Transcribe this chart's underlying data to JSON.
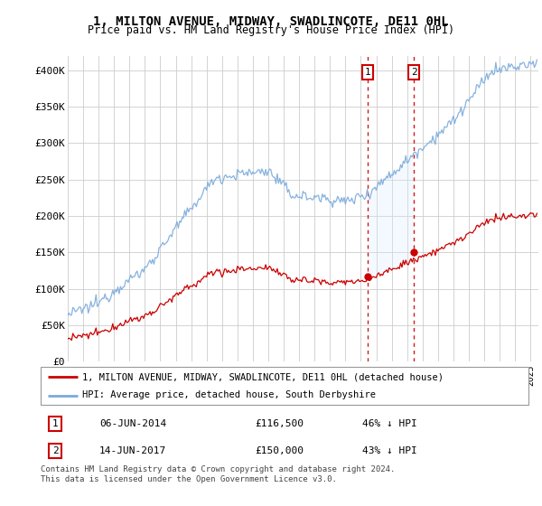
{
  "title": "1, MILTON AVENUE, MIDWAY, SWADLINCOTE, DE11 0HL",
  "subtitle": "Price paid vs. HM Land Registry's House Price Index (HPI)",
  "legend_line1": "1, MILTON AVENUE, MIDWAY, SWADLINCOTE, DE11 0HL (detached house)",
  "legend_line2": "HPI: Average price, detached house, South Derbyshire",
  "footnote": "Contains HM Land Registry data © Crown copyright and database right 2024.\nThis data is licensed under the Open Government Licence v3.0.",
  "transaction1_label": "1",
  "transaction1_date": "06-JUN-2014",
  "transaction1_price": "£116,500",
  "transaction1_hpi": "46% ↓ HPI",
  "transaction2_label": "2",
  "transaction2_date": "14-JUN-2017",
  "transaction2_price": "£150,000",
  "transaction2_hpi": "43% ↓ HPI",
  "house_color": "#cc0000",
  "hpi_color": "#7aaadd",
  "shaded_color": "#ddeeff",
  "vline_color": "#cc0000",
  "marker_color": "#cc0000",
  "ylim": [
    0,
    420000
  ],
  "yticks": [
    0,
    50000,
    100000,
    150000,
    200000,
    250000,
    300000,
    350000,
    400000
  ],
  "ytick_labels": [
    "£0",
    "£50K",
    "£100K",
    "£150K",
    "£200K",
    "£250K",
    "£300K",
    "£350K",
    "£400K"
  ],
  "transaction1_x": 2014.44,
  "transaction1_y": 116500,
  "transaction2_x": 2017.45,
  "transaction2_y": 150000,
  "xmin": 1995.0,
  "xmax": 2025.5
}
